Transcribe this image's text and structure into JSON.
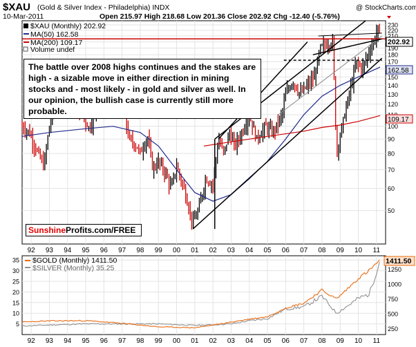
{
  "header": {
    "symbol": "$XAU",
    "name": "(Gold & Silver Index - Philadelphia) INDX",
    "date": "10-Mar-2011",
    "ohlc": "Open 215.97  High 218.68  Low 201.36  Close 202.92  Chg -12.40 (-5.76%)",
    "watermark": "@ StockCharts.com"
  },
  "legend": {
    "xau": "$XAU (Monthly) 202.92",
    "ma50": "MA(50) 162.58",
    "ma200": "MA(200) 109.17",
    "volume": "Volume undef"
  },
  "annotation": "The battle over 2008 highs continues and the stakes are high - a sizable move in either direction in mining stocks and - most likely - in gold and silver as well. In our opinion, the bullish case is currently still more probable.",
  "brand": {
    "part1": "Sunshine",
    "part2": "Profits.com/FREE"
  },
  "lower_legend": {
    "gold": "$GOLD (Monthly) 1411.50",
    "silver": "$SILVER (Monthly) 35.25"
  },
  "price_badges": {
    "xau": "202.92",
    "ma50": "162.58",
    "ma200": "109.17",
    "gold": "1411.50"
  },
  "colors": {
    "price_up": "#000000",
    "price_down": "#cc0000",
    "ma50": "#1f2a8c",
    "ma200": "#cc0000",
    "gold": "#e86a10",
    "silver": "#909090",
    "trend": "#000000",
    "resistance": "#cc0000"
  },
  "chart_data": [
    {
      "type": "line",
      "scale": "log",
      "x_ticks": [
        "92",
        "93",
        "94",
        "95",
        "96",
        "97",
        "98",
        "99",
        "00",
        "01",
        "02",
        "03",
        "04",
        "05",
        "06",
        "07",
        "08",
        "09",
        "10",
        "11"
      ],
      "y_ticks": [
        50,
        60,
        70,
        80,
        90,
        100,
        110,
        120,
        130,
        140,
        150,
        160,
        170,
        180,
        190,
        200,
        210,
        220,
        230
      ],
      "ylim": [
        38,
        238
      ],
      "xlim": [
        1991.5,
        2011.5
      ],
      "series": [
        {
          "name": "$XAU (Monthly)",
          "x": [
            1991.5,
            1991.9,
            1992.3,
            1992.7,
            1993.0,
            1993.3,
            1993.7,
            1994.0,
            1994.4,
            1994.8,
            1995.2,
            1995.6,
            1996.0,
            1996.3,
            1996.6,
            1997.0,
            1997.4,
            1997.8,
            1998.0,
            1998.4,
            1998.7,
            1999.0,
            1999.4,
            1999.7,
            2000.0,
            2000.4,
            2000.9,
            2001.2,
            2001.6,
            2002.0,
            2002.3,
            2002.6,
            2002.9,
            2003.2,
            2003.6,
            2004.0,
            2004.4,
            2004.9,
            2005.3,
            2005.8,
            2006.0,
            2006.4,
            2006.8,
            2007.2,
            2007.6,
            2007.9,
            2008.2,
            2008.6,
            2008.8,
            2009.1,
            2009.5,
            2009.9,
            2010.2,
            2010.6,
            2010.9,
            2011.1,
            2011.2
          ],
          "values": [
            100,
            95,
            82,
            72,
            100,
            120,
            130,
            122,
            118,
            110,
            98,
            115,
            135,
            150,
            128,
            118,
            90,
            85,
            80,
            92,
            70,
            75,
            68,
            60,
            72,
            60,
            45,
            50,
            65,
            62,
            90,
            80,
            95,
            85,
            95,
            110,
            90,
            100,
            95,
            110,
            130,
            145,
            130,
            140,
            150,
            190,
            195,
            200,
            80,
            100,
            130,
            170,
            160,
            185,
            205,
            225,
            202.92
          ]
        },
        {
          "name": "MA(50)",
          "x": [
            1991.5,
            1993,
            1995,
            1996.5,
            1998,
            1999,
            2000,
            2001,
            2002,
            2003,
            2004,
            2005,
            2006,
            2007,
            2008,
            2009,
            2010,
            2011.2
          ],
          "values": [
            92,
            95,
            98,
            100,
            95,
            85,
            70,
            58,
            54,
            57,
            65,
            75,
            90,
            110,
            128,
            140,
            150,
            162.58
          ]
        },
        {
          "name": "MA(200)",
          "x": [
            2001.5,
            2003,
            2005,
            2007,
            2008,
            2009,
            2010,
            2011.2
          ],
          "values": [
            85,
            88,
            92,
            96,
            99,
            101,
            104,
            109.17
          ]
        }
      ]
    },
    {
      "type": "line",
      "x_ticks": [
        "92",
        "93",
        "94",
        "95",
        "96",
        "97",
        "98",
        "99",
        "00",
        "01",
        "02",
        "03",
        "04",
        "05",
        "06",
        "07",
        "08",
        "09",
        "10",
        "11"
      ],
      "y_ticks_left": [
        5,
        10,
        15,
        20,
        25,
        30,
        35
      ],
      "y_ticks_right": [
        250,
        500,
        750,
        1000,
        1250
      ],
      "series": [
        {
          "name": "$GOLD (Monthly)",
          "axis": "right",
          "x": [
            1991.5,
            1993,
            1995,
            1997,
            1999,
            2001,
            2002,
            2003,
            2004,
            2005,
            2006,
            2007,
            2008,
            2008.8,
            2009.5,
            2010,
            2010.6,
            2011.2
          ],
          "values": [
            360,
            380,
            385,
            340,
            280,
            265,
            310,
            360,
            410,
            450,
            600,
            680,
            900,
            750,
            950,
            1100,
            1230,
            1411.5
          ]
        },
        {
          "name": "$SILVER (Monthly)",
          "axis": "left",
          "x": [
            1991.5,
            1993,
            1995,
            1997,
            1999,
            2001,
            2002,
            2003,
            2004,
            2005,
            2006,
            2007,
            2008,
            2008.8,
            2009.5,
            2010,
            2010.6,
            2011.2
          ],
          "values": [
            4,
            4.5,
            5,
            5,
            5,
            4.3,
            4.6,
            5,
            6.5,
            7.5,
            12,
            13,
            18,
            10,
            14,
            17,
            19,
            35.25
          ]
        }
      ]
    }
  ]
}
